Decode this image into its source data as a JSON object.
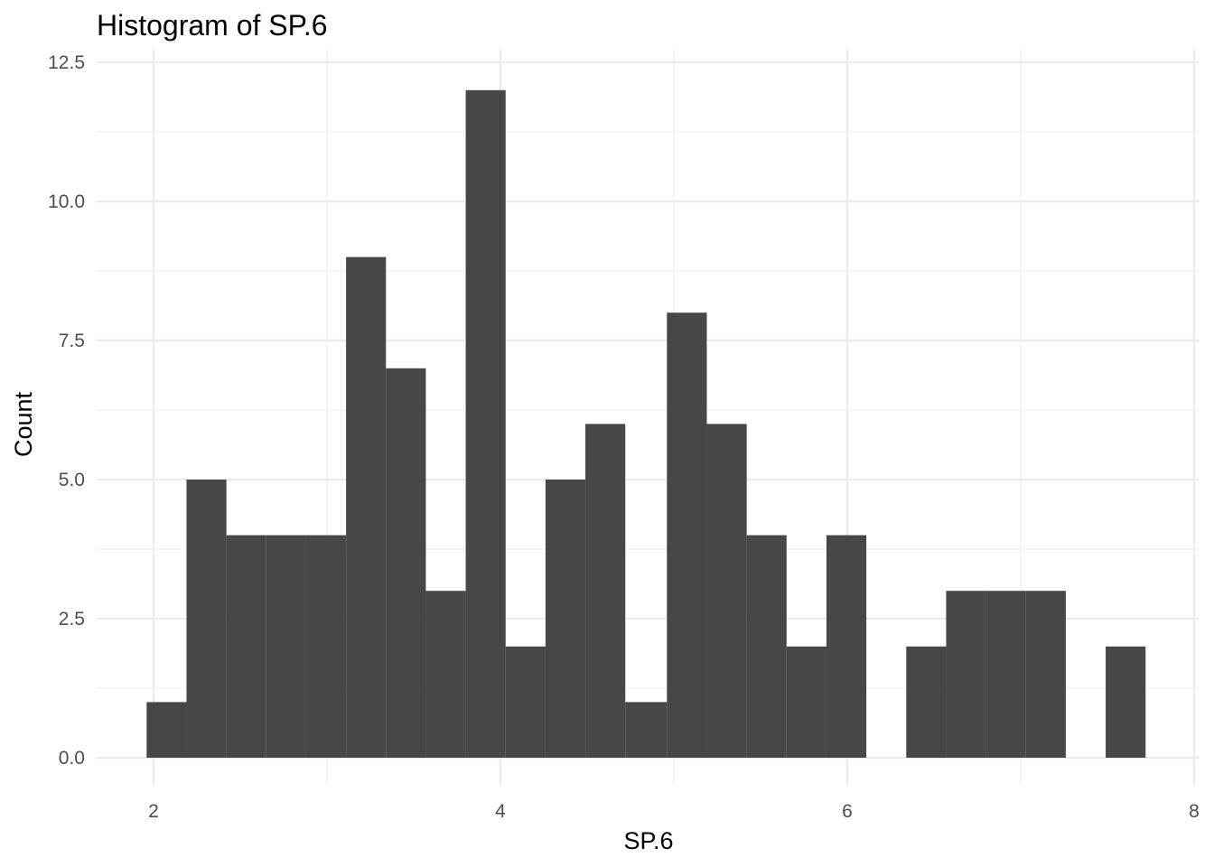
{
  "chart_data": {
    "type": "bar",
    "title": "Histogram of SP.6",
    "xlabel": "SP.6",
    "ylabel": "Count",
    "xlim": [
      1.84,
      8.0
    ],
    "ylim": [
      0,
      12.5
    ],
    "x_ticks": [
      2,
      4,
      6,
      8
    ],
    "x_tick_labels": [
      "2",
      "4",
      "6",
      "8"
    ],
    "y_ticks": [
      0,
      2.5,
      5,
      7.5,
      10,
      12.5
    ],
    "y_tick_labels": [
      "0.0",
      "2.5",
      "5.0",
      "7.5",
      "10.0",
      "12.5"
    ],
    "grid": true,
    "bar_color": "#474747",
    "bins": [
      {
        "x0": 1.96,
        "x1": 2.19,
        "count": 1
      },
      {
        "x0": 2.19,
        "x1": 2.42,
        "count": 5
      },
      {
        "x0": 2.42,
        "x1": 2.65,
        "count": 4
      },
      {
        "x0": 2.65,
        "x1": 2.88,
        "count": 4
      },
      {
        "x0": 2.88,
        "x1": 3.11,
        "count": 4
      },
      {
        "x0": 3.11,
        "x1": 3.34,
        "count": 9
      },
      {
        "x0": 3.34,
        "x1": 3.57,
        "count": 7
      },
      {
        "x0": 3.57,
        "x1": 3.8,
        "count": 3
      },
      {
        "x0": 3.8,
        "x1": 4.03,
        "count": 12
      },
      {
        "x0": 4.03,
        "x1": 4.26,
        "count": 2
      },
      {
        "x0": 4.26,
        "x1": 4.49,
        "count": 5
      },
      {
        "x0": 4.49,
        "x1": 4.72,
        "count": 6
      },
      {
        "x0": 4.72,
        "x1": 4.96,
        "count": 1
      },
      {
        "x0": 4.96,
        "x1": 5.19,
        "count": 8
      },
      {
        "x0": 5.19,
        "x1": 5.42,
        "count": 6
      },
      {
        "x0": 5.42,
        "x1": 5.65,
        "count": 4
      },
      {
        "x0": 5.65,
        "x1": 5.88,
        "count": 2
      },
      {
        "x0": 5.88,
        "x1": 6.11,
        "count": 4
      },
      {
        "x0": 6.11,
        "x1": 6.34,
        "count": 0
      },
      {
        "x0": 6.34,
        "x1": 6.57,
        "count": 2
      },
      {
        "x0": 6.57,
        "x1": 6.8,
        "count": 3
      },
      {
        "x0": 6.8,
        "x1": 7.03,
        "count": 3
      },
      {
        "x0": 7.03,
        "x1": 7.26,
        "count": 3
      },
      {
        "x0": 7.26,
        "x1": 7.49,
        "count": 0
      },
      {
        "x0": 7.49,
        "x1": 7.72,
        "count": 2
      }
    ]
  }
}
